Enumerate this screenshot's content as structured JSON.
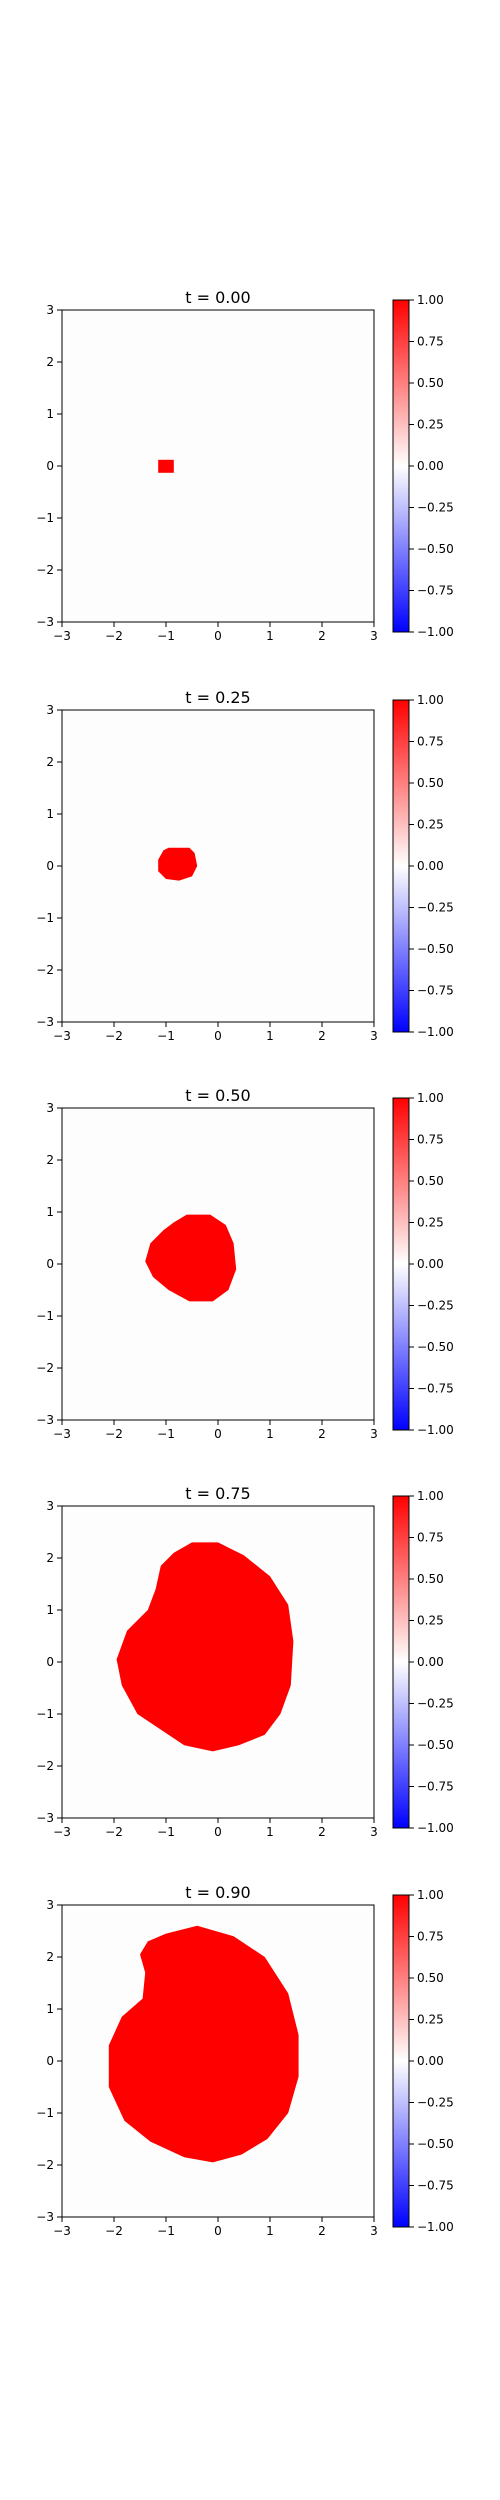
{
  "figure": {
    "background": "#ffffff",
    "fill_color": "#ff0000",
    "colormap": [
      "#0000ff",
      "#ffffff",
      "#ff0000"
    ],
    "colorbar_ticks": [
      "1.00",
      "0.75",
      "0.50",
      "0.25",
      "0.00",
      "−0.25",
      "−0.50",
      "−0.75",
      "−1.00"
    ],
    "axis_ticks": [
      "−3",
      "−2",
      "−1",
      "0",
      "1",
      "2",
      "3"
    ]
  },
  "chart_data": [
    {
      "type": "heatmap",
      "title": "t = 0.00",
      "xlim": [
        -3,
        3
      ],
      "ylim": [
        -3,
        3
      ],
      "clim": [
        -1,
        1
      ],
      "xticks": [
        -3,
        -2,
        -1,
        0,
        1,
        2,
        3
      ],
      "yticks": [
        -3,
        -2,
        -1,
        0,
        1,
        2,
        3
      ],
      "colorbar_ticks": [
        1.0,
        0.75,
        0.5,
        0.25,
        0.0,
        -0.25,
        -0.5,
        -0.75,
        -1.0
      ],
      "region_value": 1.0,
      "background_value": 0.0,
      "region_boundary": [
        [
          -1.15,
          0.12
        ],
        [
          -0.85,
          0.12
        ],
        [
          -0.85,
          -0.13
        ],
        [
          -1.15,
          -0.13
        ]
      ]
    },
    {
      "type": "heatmap",
      "title": "t = 0.25",
      "xlim": [
        -3,
        3
      ],
      "ylim": [
        -3,
        3
      ],
      "clim": [
        -1,
        1
      ],
      "xticks": [
        -3,
        -2,
        -1,
        0,
        1,
        2,
        3
      ],
      "yticks": [
        -3,
        -2,
        -1,
        0,
        1,
        2,
        3
      ],
      "colorbar_ticks": [
        1.0,
        0.75,
        0.5,
        0.25,
        0.0,
        -0.25,
        -0.5,
        -0.75,
        -1.0
      ],
      "region_value": 1.0,
      "background_value": 0.0,
      "region_boundary": [
        [
          -0.95,
          0.35
        ],
        [
          -0.55,
          0.35
        ],
        [
          -0.45,
          0.25
        ],
        [
          -0.4,
          0.0
        ],
        [
          -0.5,
          -0.2
        ],
        [
          -0.75,
          -0.28
        ],
        [
          -1.0,
          -0.25
        ],
        [
          -1.15,
          -0.1
        ],
        [
          -1.15,
          0.12
        ],
        [
          -1.05,
          0.3
        ]
      ]
    },
    {
      "type": "heatmap",
      "title": "t = 0.50",
      "xlim": [
        -3,
        3
      ],
      "ylim": [
        -3,
        3
      ],
      "clim": [
        -1,
        1
      ],
      "xticks": [
        -3,
        -2,
        -1,
        0,
        1,
        2,
        3
      ],
      "yticks": [
        -3,
        -2,
        -1,
        0,
        1,
        2,
        3
      ],
      "colorbar_ticks": [
        1.0,
        0.75,
        0.5,
        0.25,
        0.0,
        -0.25,
        -0.5,
        -0.75,
        -1.0
      ],
      "region_value": 1.0,
      "background_value": 0.0,
      "region_boundary": [
        [
          -0.6,
          0.95
        ],
        [
          -0.15,
          0.95
        ],
        [
          0.15,
          0.75
        ],
        [
          0.3,
          0.4
        ],
        [
          0.35,
          -0.1
        ],
        [
          0.2,
          -0.5
        ],
        [
          -0.1,
          -0.72
        ],
        [
          -0.55,
          -0.72
        ],
        [
          -0.95,
          -0.5
        ],
        [
          -1.25,
          -0.25
        ],
        [
          -1.4,
          0.05
        ],
        [
          -1.3,
          0.4
        ],
        [
          -1.05,
          0.65
        ],
        [
          -0.85,
          0.8
        ]
      ]
    },
    {
      "type": "heatmap",
      "title": "t = 0.75",
      "xlim": [
        -3,
        3
      ],
      "ylim": [
        -3,
        3
      ],
      "clim": [
        -1,
        1
      ],
      "xticks": [
        -3,
        -2,
        -1,
        0,
        1,
        2,
        3
      ],
      "yticks": [
        -3,
        -2,
        -1,
        0,
        1,
        2,
        3
      ],
      "colorbar_ticks": [
        1.0,
        0.75,
        0.5,
        0.25,
        0.0,
        -0.25,
        -0.5,
        -0.75,
        -1.0
      ],
      "region_value": 1.0,
      "background_value": 0.0,
      "region_boundary": [
        [
          -0.85,
          2.1
        ],
        [
          -0.5,
          2.3
        ],
        [
          0.0,
          2.3
        ],
        [
          0.5,
          2.05
        ],
        [
          1.0,
          1.65
        ],
        [
          1.35,
          1.1
        ],
        [
          1.45,
          0.4
        ],
        [
          1.4,
          -0.45
        ],
        [
          1.2,
          -1.0
        ],
        [
          0.9,
          -1.4
        ],
        [
          0.4,
          -1.6
        ],
        [
          -0.1,
          -1.72
        ],
        [
          -0.65,
          -1.6
        ],
        [
          -1.1,
          -1.3
        ],
        [
          -1.55,
          -1.0
        ],
        [
          -1.85,
          -0.45
        ],
        [
          -1.95,
          0.05
        ],
        [
          -1.75,
          0.6
        ],
        [
          -1.35,
          1.0
        ],
        [
          -1.2,
          1.4
        ],
        [
          -1.1,
          1.85
        ]
      ]
    },
    {
      "type": "heatmap",
      "title": "t = 0.90",
      "xlim": [
        -3,
        3
      ],
      "ylim": [
        -3,
        3
      ],
      "clim": [
        -1,
        1
      ],
      "xticks": [
        -3,
        -2,
        -1,
        0,
        1,
        2,
        3
      ],
      "yticks": [
        -3,
        -2,
        -1,
        0,
        1,
        2,
        3
      ],
      "colorbar_ticks": [
        1.0,
        0.75,
        0.5,
        0.25,
        0.0,
        -0.25,
        -0.5,
        -0.75,
        -1.0
      ],
      "region_value": 1.0,
      "background_value": 0.0,
      "region_boundary": [
        [
          -1.0,
          2.45
        ],
        [
          -0.4,
          2.6
        ],
        [
          0.3,
          2.4
        ],
        [
          0.9,
          2.0
        ],
        [
          1.35,
          1.3
        ],
        [
          1.55,
          0.5
        ],
        [
          1.55,
          -0.3
        ],
        [
          1.35,
          -1.0
        ],
        [
          0.95,
          -1.5
        ],
        [
          0.45,
          -1.8
        ],
        [
          -0.1,
          -1.95
        ],
        [
          -0.65,
          -1.85
        ],
        [
          -1.3,
          -1.55
        ],
        [
          -1.8,
          -1.15
        ],
        [
          -2.1,
          -0.5
        ],
        [
          -2.1,
          0.3
        ],
        [
          -1.85,
          0.85
        ],
        [
          -1.45,
          1.2
        ],
        [
          -1.4,
          1.7
        ],
        [
          -1.5,
          2.05
        ],
        [
          -1.35,
          2.3
        ]
      ]
    }
  ]
}
